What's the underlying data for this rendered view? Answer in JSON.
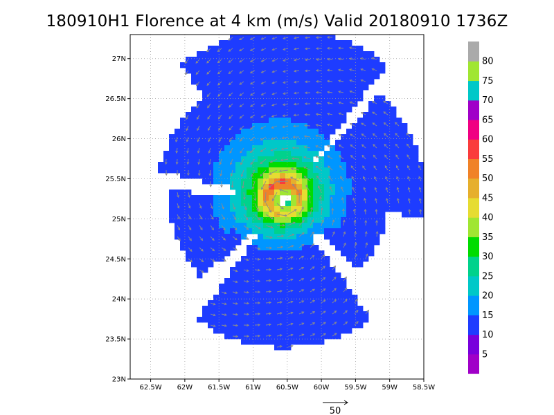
{
  "title": "180910H1 Florence at 4 km (m/s) Valid 20180910 1736Z",
  "map": {
    "lon_range": [
      -62.8,
      -58.5
    ],
    "lat_range": [
      23.0,
      27.3
    ],
    "lon_ticks": [
      -62.5,
      -62.0,
      -61.5,
      -61.0,
      -60.5,
      -60.0,
      -59.5,
      -59.0,
      -58.5
    ],
    "lon_tick_labels": [
      "62.5W",
      "62W",
      "61.5W",
      "61W",
      "60.5W",
      "60W",
      "59.5W",
      "59W",
      "58.5W"
    ],
    "lat_ticks": [
      23.0,
      23.5,
      24.0,
      24.5,
      25.0,
      25.5,
      26.0,
      26.5,
      27.0
    ],
    "lat_tick_labels": [
      "23N",
      "23.5N",
      "24N",
      "24.5N",
      "25N",
      "25.5N",
      "26N",
      "26.5N",
      "27N"
    ],
    "grid": "dotted",
    "storm_center": {
      "lon": -60.55,
      "lat": 25.25
    },
    "field": "wind speed at 4 km",
    "units": "m/s",
    "max_wind": 58
  },
  "colorbar": {
    "labels": [
      "5",
      "10",
      "15",
      "20",
      "25",
      "30",
      "35",
      "40",
      "45",
      "50",
      "55",
      "60",
      "65",
      "70",
      "75",
      "80"
    ],
    "colors": [
      "#a000c8",
      "#7800dc",
      "#1e3cff",
      "#0096ff",
      "#00c8c8",
      "#00d28c",
      "#00dc00",
      "#a0e632",
      "#e6dc32",
      "#e6af2d",
      "#f08228",
      "#fa3c3c",
      "#f00082",
      "#a000c8",
      "#00c8c8",
      "#a0e632",
      "#aaaaaa"
    ]
  },
  "reference_vector": {
    "value": "50"
  }
}
